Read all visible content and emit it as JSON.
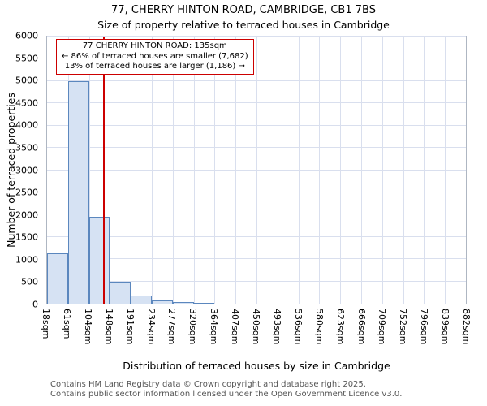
{
  "chart_data": {
    "type": "bar",
    "title": "77, CHERRY HINTON ROAD, CAMBRIDGE, CB1 7BS",
    "subtitle": "Size of property relative to terraced houses in Cambridge",
    "xlabel": "Distribution of terraced houses by size in Cambridge",
    "ylabel": "Number of terraced properties",
    "bin_edges_sqm": [
      18,
      61,
      104,
      148,
      191,
      234,
      277,
      320,
      364,
      407,
      450,
      493,
      536,
      580,
      623,
      666,
      709,
      752,
      796,
      839,
      882
    ],
    "x_tick_labels": [
      "18sqm",
      "61sqm",
      "104sqm",
      "148sqm",
      "191sqm",
      "234sqm",
      "277sqm",
      "320sqm",
      "364sqm",
      "407sqm",
      "450sqm",
      "493sqm",
      "536sqm",
      "580sqm",
      "623sqm",
      "666sqm",
      "709sqm",
      "752sqm",
      "796sqm",
      "839sqm",
      "882sqm"
    ],
    "values": [
      1130,
      5000,
      1950,
      500,
      190,
      80,
      30,
      20,
      0,
      0,
      0,
      0,
      0,
      0,
      0,
      0,
      0,
      0,
      0,
      0
    ],
    "ylim": [
      0,
      6000
    ],
    "yticks": [
      0,
      500,
      1000,
      1500,
      2000,
      2500,
      3000,
      3500,
      4000,
      4500,
      5000,
      5500,
      6000
    ],
    "grid": true,
    "legend": null,
    "marker": {
      "value_sqm": 135,
      "label_lines": [
        "77 CHERRY HINTON ROAD: 135sqm",
        "← 86% of terraced houses are smaller (7,682)",
        "13% of terraced houses are larger (1,186) →"
      ]
    },
    "colors": {
      "bar_fill": "#d6e2f3",
      "bar_border": "#5b87be",
      "marker_line": "#cc0000",
      "annotation_border": "#cc0000",
      "grid": "#d9dfee"
    }
  },
  "footer": {
    "line1": "Contains HM Land Registry data © Crown copyright and database right 2025.",
    "line2": "Contains public sector information licensed under the Open Government Licence v3.0."
  }
}
